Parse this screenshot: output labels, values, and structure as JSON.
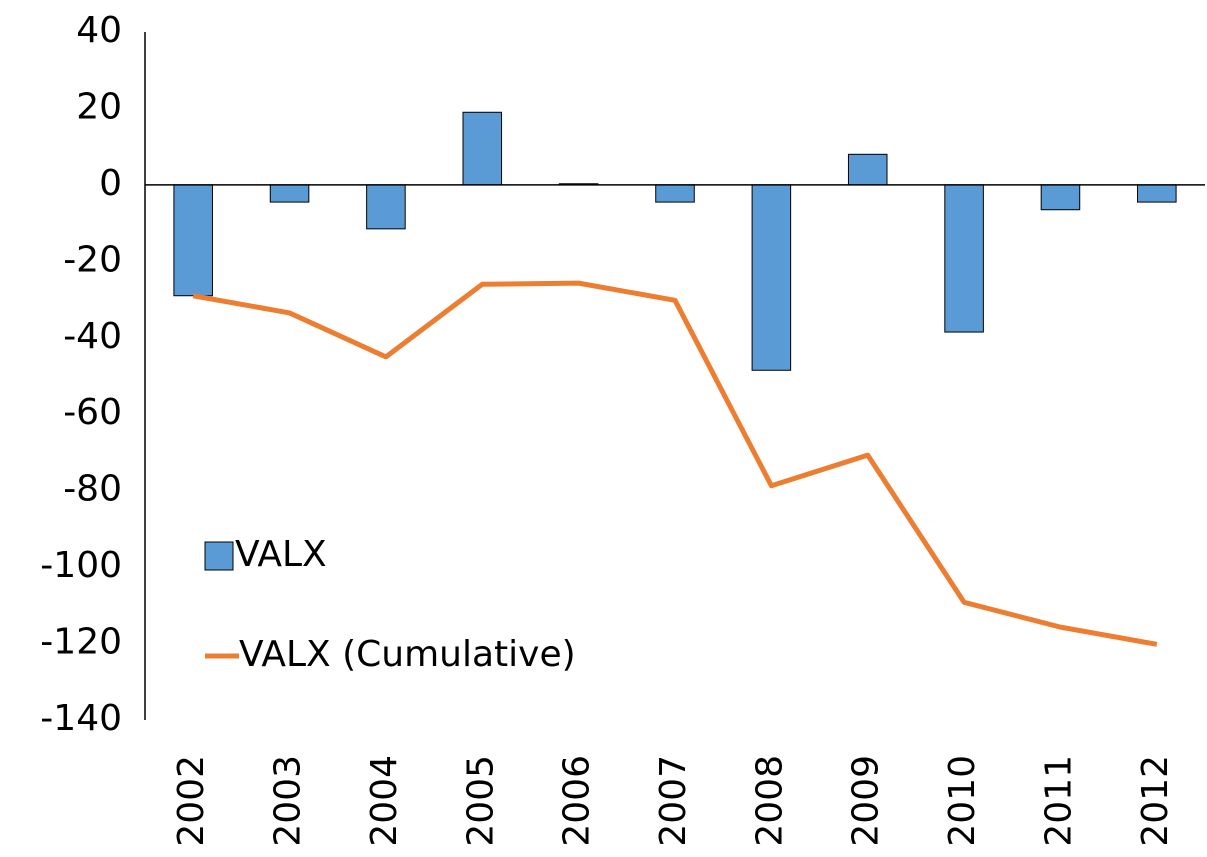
{
  "chart_data": {
    "type": "bar_line",
    "categories": [
      "2002",
      "2003",
      "2004",
      "2005",
      "2006",
      "2007",
      "2008",
      "2009",
      "2010",
      "2011",
      "2012"
    ],
    "series": [
      {
        "name": "VALX",
        "type": "bar",
        "color": "#5b9bd5",
        "values": [
          -29,
          -4.5,
          -11.5,
          19,
          0.3,
          -4.5,
          -48.5,
          8,
          -38.5,
          -6.5,
          -4.5
        ]
      },
      {
        "name": "VALX (Cumulative)",
        "type": "line",
        "color": "#ed7d31",
        "values": [
          -29,
          -33.5,
          -45,
          -26,
          -25.7,
          -30.2,
          -78.7,
          -70.7,
          -109.2,
          -115.7,
          -120.2
        ]
      }
    ],
    "ylim": [
      -140,
      40
    ],
    "yticks": [
      -140,
      -120,
      -100,
      -80,
      -60,
      -40,
      -20,
      0,
      20,
      40
    ],
    "grid": false,
    "legend": "left"
  }
}
